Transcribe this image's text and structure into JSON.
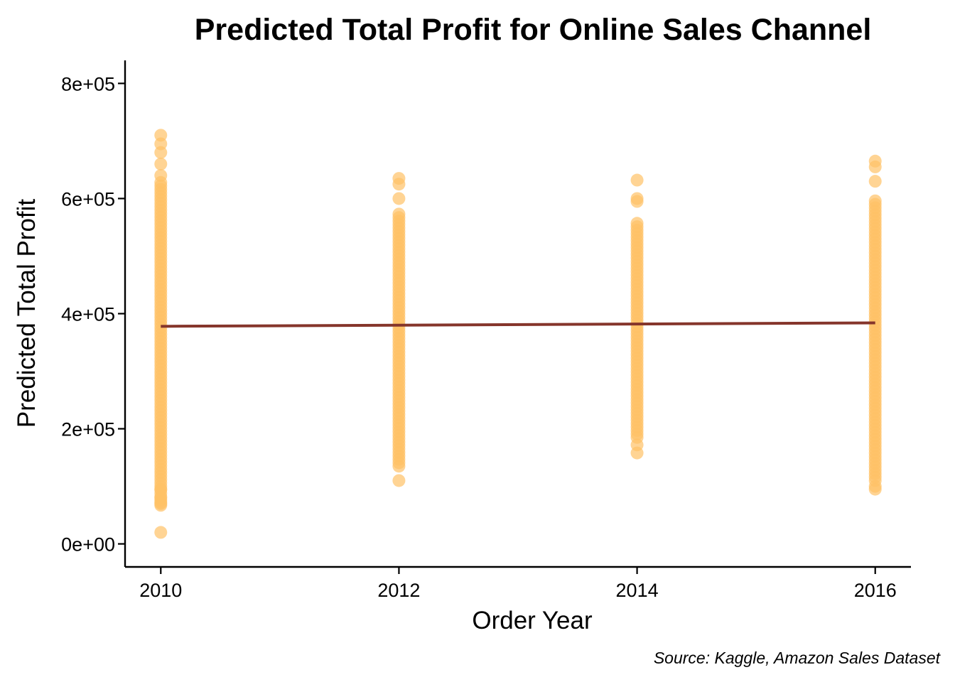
{
  "chart_data": {
    "type": "scatter",
    "title": "Predicted Total Profit for Online Sales Channel",
    "xlabel": "Order Year",
    "ylabel": "Predicted Total Profit",
    "caption": "Source: Kaggle, Amazon Sales Dataset",
    "xlim": [
      2009.7,
      2016.3
    ],
    "ylim": [
      -40000,
      840000
    ],
    "x_ticks": [
      2010,
      2012,
      2014,
      2016
    ],
    "x_tick_labels": [
      "2010",
      "2012",
      "2014",
      "2016"
    ],
    "y_ticks": [
      0,
      200000,
      400000,
      600000,
      800000
    ],
    "y_tick_labels": [
      "0e+00",
      "2e+05",
      "4e+05",
      "6e+05",
      "8e+05"
    ],
    "grid": false,
    "point_color": "#FFC266",
    "line_color": "#85352B",
    "series": [
      {
        "type": "point_ranges",
        "groups": [
          {
            "x": 2010,
            "dense_min": 70000,
            "dense_max": 630000,
            "outliers": [
              20000,
              67000,
              72000,
              80000,
              95000,
              640000,
              660000,
              680000,
              695000,
              710000
            ]
          },
          {
            "x": 2012,
            "dense_min": 135000,
            "dense_max": 575000,
            "outliers": [
              110000,
              600000,
              625000,
              635000
            ]
          },
          {
            "x": 2014,
            "dense_min": 185000,
            "dense_max": 560000,
            "outliers": [
              158000,
              172000,
              595000,
              600000,
              632000
            ]
          },
          {
            "x": 2016,
            "dense_min": 110000,
            "dense_max": 600000,
            "outliers": [
              95000,
              100000,
              630000,
              655000,
              665000
            ]
          }
        ]
      },
      {
        "type": "line",
        "x": [
          2010,
          2016
        ],
        "y": [
          378000,
          384000
        ]
      }
    ]
  }
}
